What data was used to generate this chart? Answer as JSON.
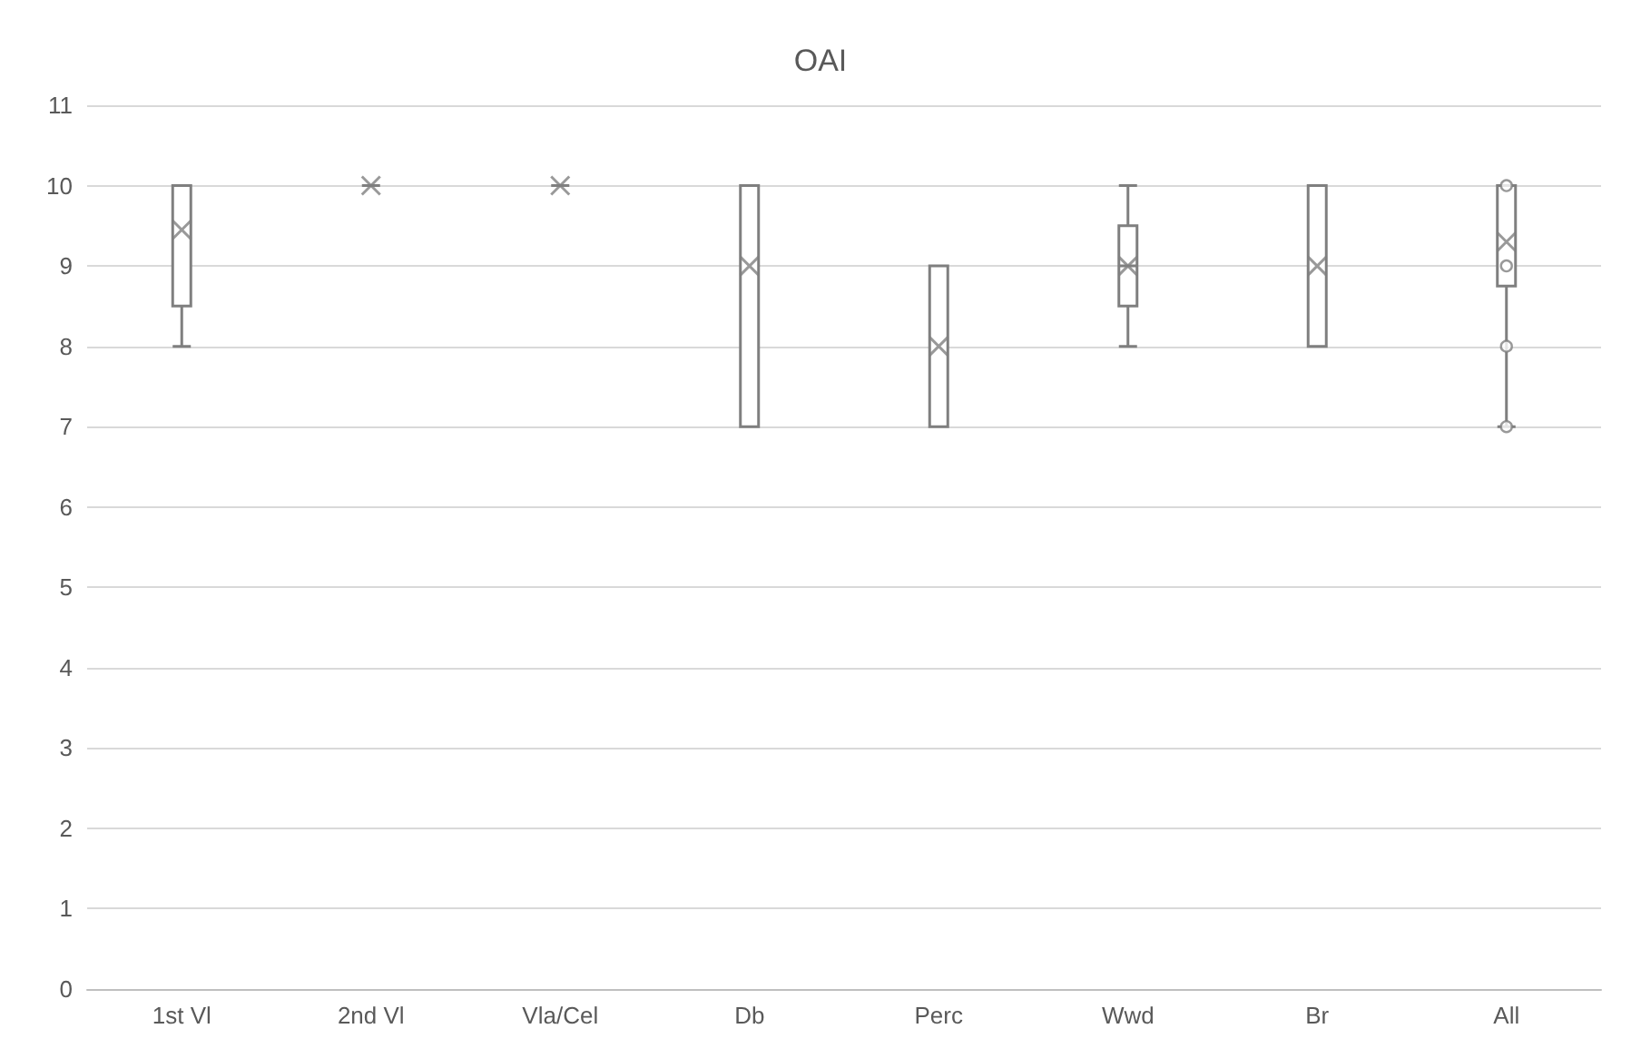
{
  "chart_data": {
    "type": "box",
    "title": "OAI",
    "categories": [
      "1st Vl",
      "2nd Vl",
      "Vla/Cel",
      "Db",
      "Perc",
      "Wwd",
      "Br",
      "All"
    ],
    "series": [
      {
        "color": "#7f7f7f",
        "boxes": [
          {
            "low": 8,
            "q1": 8.5,
            "median": 10,
            "q3": 10,
            "high": 10,
            "mean": 9.45
          },
          {
            "low": 10,
            "q1": 10,
            "median": 10,
            "q3": 10,
            "high": 10,
            "mean": 10
          },
          {
            "low": 10,
            "q1": 10,
            "median": 10,
            "q3": 10,
            "high": 10,
            "mean": 10
          },
          {
            "low": 7,
            "q1": 7,
            "median": 10,
            "q3": 10,
            "high": 10,
            "mean": 9
          },
          {
            "low": 7,
            "q1": 7,
            "median": 9,
            "q3": 9,
            "high": 9,
            "mean": 8
          },
          {
            "low": 8,
            "q1": 8.5,
            "median": 9,
            "q3": 9.5,
            "high": 10,
            "mean": 9
          },
          {
            "low": 8,
            "q1": 8,
            "median": 10,
            "q3": 10,
            "high": 10,
            "mean": 9
          },
          {
            "low": 7,
            "q1": 8.75,
            "median": 10,
            "q3": 10,
            "high": 10,
            "mean": 9.3,
            "outliers": [
              10,
              9,
              8,
              7
            ]
          }
        ]
      }
    ],
    "ylim": [
      0,
      11
    ],
    "yticks": [
      0,
      1,
      2,
      3,
      4,
      5,
      6,
      7,
      8,
      9,
      10,
      11
    ],
    "grid": "y",
    "marker": "cross"
  }
}
